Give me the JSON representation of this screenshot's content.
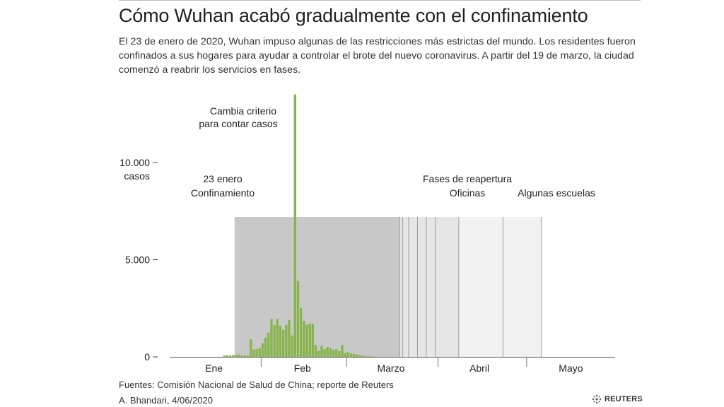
{
  "header": {
    "title": "Cómo Wuhan acabó gradualmente con el confinamiento",
    "subtitle": "El 23 de enero de 2020, Wuhan impuso algunas de las restricciones más estrictas del mundo. Los residentes fueron confinados a sus hogares para ayudar a controlar el brote del nuevo coronavirus. A partir del 19 de marzo, la ciudad comenzó a reabrir los servicios en fases."
  },
  "footer": {
    "sources": "Fuentes: Comisión Nacional de Salud de China; reporte de Reuters",
    "byline": "A. Bhandari,  4/06/2020",
    "logo_text": "REUTERS"
  },
  "chart_data": {
    "type": "bar",
    "x_start": "2020-01-01",
    "x_end": "2020-05-31",
    "ylim": [
      0,
      14000
    ],
    "y_ticks": [
      {
        "value": 0,
        "label": "0"
      },
      {
        "value": 5000,
        "label": "5.000"
      },
      {
        "value": 10000,
        "label": "10.000"
      }
    ],
    "y_unit": "casos",
    "month_labels": [
      {
        "date": "2020-01-16",
        "label": "Ene"
      },
      {
        "date": "2020-02-15",
        "label": "Feb"
      },
      {
        "date": "2020-03-16",
        "label": "Marzo"
      },
      {
        "date": "2020-04-15",
        "label": "Abril"
      },
      {
        "date": "2020-05-16",
        "label": "Mayo"
      }
    ],
    "month_boundaries": [
      "2020-02-01",
      "2020-03-01",
      "2020-04-01",
      "2020-05-01"
    ],
    "dates": [
      "2020-01-19",
      "2020-01-20",
      "2020-01-21",
      "2020-01-22",
      "2020-01-23",
      "2020-01-24",
      "2020-01-25",
      "2020-01-26",
      "2020-01-27",
      "2020-01-28",
      "2020-01-29",
      "2020-01-30",
      "2020-01-31",
      "2020-02-01",
      "2020-02-02",
      "2020-02-03",
      "2020-02-04",
      "2020-02-05",
      "2020-02-06",
      "2020-02-07",
      "2020-02-08",
      "2020-02-09",
      "2020-02-10",
      "2020-02-11",
      "2020-02-12",
      "2020-02-13",
      "2020-02-14",
      "2020-02-15",
      "2020-02-16",
      "2020-02-17",
      "2020-02-18",
      "2020-02-19",
      "2020-02-20",
      "2020-02-21",
      "2020-02-22",
      "2020-02-23",
      "2020-02-24",
      "2020-02-25",
      "2020-02-26",
      "2020-02-27",
      "2020-02-28",
      "2020-02-29",
      "2020-03-01",
      "2020-03-02",
      "2020-03-03",
      "2020-03-04",
      "2020-03-05",
      "2020-03-06",
      "2020-03-07",
      "2020-03-08",
      "2020-03-09",
      "2020-03-10"
    ],
    "values": [
      60,
      80,
      70,
      90,
      100,
      120,
      60,
      90,
      60,
      900,
      380,
      400,
      450,
      700,
      1000,
      1250,
      1950,
      1650,
      1950,
      1600,
      1400,
      1650,
      1900,
      1100,
      13500,
      3900,
      2500,
      1850,
      1650,
      1700,
      1700,
      600,
      300,
      560,
      400,
      500,
      450,
      350,
      400,
      300,
      600,
      200,
      250,
      180,
      150,
      120,
      80,
      60,
      40,
      30,
      20,
      10
    ],
    "lockdown": {
      "start": "2020-01-23",
      "end": "2020-05-31",
      "level": 7200
    },
    "reopening_phases": [
      "2020-03-19",
      "2020-03-20",
      "2020-03-22",
      "2020-03-25",
      "2020-03-28",
      "2020-03-31",
      "2020-04-08",
      "2020-04-23",
      "2020-05-06"
    ],
    "annotations": {
      "spike_line1": "Cambia criterio",
      "spike_line2": "para contar casos",
      "lockdown_line1": "23 enero",
      "lockdown_line2": "Confinamiento",
      "reopen": "Fases de reapertura",
      "offices": "Oficinas",
      "schools": "Algunas escuelas"
    },
    "colors": {
      "bar": "#86b64a",
      "lockdown": "#c9c8c8",
      "phase_light": "#e6e6e6",
      "phase_lighter": "#f1f1f1",
      "phase_line": "#9e9e9e"
    }
  }
}
